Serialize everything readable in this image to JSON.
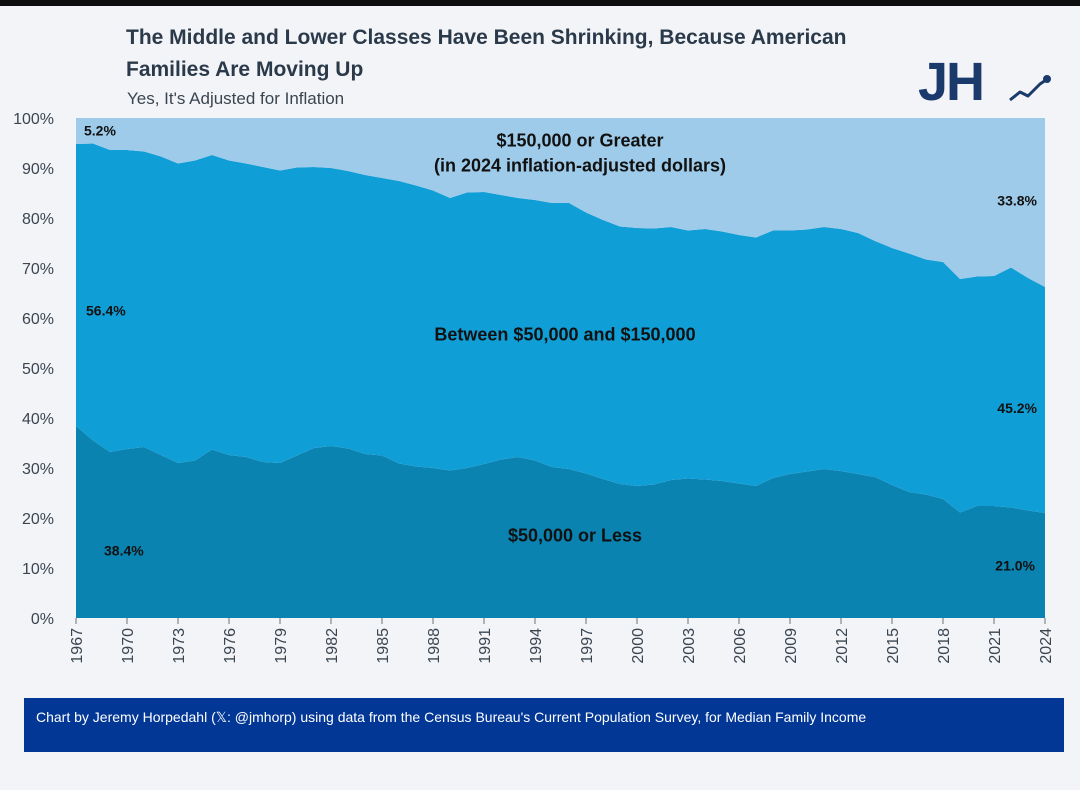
{
  "title": "The Middle and Lower Classes Have Been Shrinking, Because American Families Are Moving Up",
  "subtitle": "Yes, It's Adjusted for Inflation",
  "logo_text": "JH",
  "footer": "Chart by Jeremy Horpedahl (𝕏: @jmhorp) using data from the Census Bureau's Current Population Survey, for Median Family Income",
  "colors": {
    "low": "#0b83b1",
    "mid": "#109ed6",
    "high": "#9ecbe9",
    "logo": "#1a3a6b",
    "footer": "#023796"
  },
  "chart_data": {
    "type": "area",
    "stacked": true,
    "x": [
      1967,
      1968,
      1969,
      1970,
      1971,
      1972,
      1973,
      1974,
      1975,
      1976,
      1977,
      1978,
      1979,
      1980,
      1981,
      1982,
      1983,
      1984,
      1985,
      1986,
      1987,
      1988,
      1989,
      1990,
      1991,
      1992,
      1993,
      1994,
      1995,
      1996,
      1997,
      1998,
      1999,
      2000,
      2001,
      2002,
      2003,
      2004,
      2005,
      2006,
      2007,
      2008,
      2009,
      2010,
      2011,
      2012,
      2013,
      2014,
      2015,
      2016,
      2017,
      2018,
      2019,
      2020,
      2021,
      2022,
      2023,
      2024
    ],
    "xticks": [
      "1967",
      "1970",
      "1973",
      "1976",
      "1979",
      "1982",
      "1985",
      "1988",
      "1991",
      "1994",
      "1997",
      "2000",
      "2003",
      "2006",
      "2009",
      "2012",
      "2015",
      "2018",
      "2021",
      "2024"
    ],
    "yticks": [
      "0%",
      "10%",
      "20%",
      "30%",
      "40%",
      "50%",
      "60%",
      "70%",
      "80%",
      "90%",
      "100%"
    ],
    "ylim": [
      0,
      100
    ],
    "series": [
      {
        "name": "$50,000 or Less",
        "values": [
          38.4,
          35.5,
          33.2,
          33.8,
          34.2,
          32.6,
          31.0,
          31.5,
          33.7,
          32.6,
          32.2,
          31.2,
          31.0,
          32.5,
          34.0,
          34.4,
          33.9,
          32.8,
          32.5,
          30.9,
          30.3,
          30.0,
          29.5,
          30.0,
          30.8,
          31.7,
          32.2,
          31.5,
          30.2,
          29.8,
          28.9,
          27.8,
          26.8,
          26.4,
          26.7,
          27.6,
          27.9,
          27.7,
          27.4,
          26.9,
          26.4,
          28.0,
          28.8,
          29.3,
          29.8,
          29.4,
          28.8,
          28.2,
          26.6,
          25.2,
          24.7,
          23.8,
          21.1,
          22.4,
          22.4,
          22.1,
          21.5,
          21.0
        ]
      },
      {
        "name": "Between $50,000 and $150,000",
        "values": [
          56.4,
          59.4,
          60.4,
          59.8,
          59.1,
          59.7,
          59.9,
          60.0,
          58.9,
          58.9,
          58.7,
          59.0,
          58.5,
          57.6,
          56.2,
          55.6,
          55.5,
          55.8,
          55.5,
          56.5,
          56.2,
          55.5,
          54.5,
          55.1,
          54.4,
          52.9,
          51.8,
          52.1,
          52.8,
          53.2,
          52.2,
          51.8,
          51.5,
          51.6,
          51.2,
          50.6,
          49.6,
          50.1,
          49.9,
          49.7,
          49.7,
          49.5,
          48.7,
          48.4,
          48.4,
          48.4,
          48.2,
          47.2,
          47.4,
          47.7,
          47.0,
          47.4,
          46.7,
          45.9,
          46.0,
          48.0,
          46.5,
          45.2
        ]
      },
      {
        "name": "$150,000 or Greater",
        "values": [
          5.2,
          5.1,
          6.4,
          6.4,
          6.7,
          7.7,
          9.1,
          8.5,
          7.4,
          8.5,
          9.1,
          9.8,
          10.5,
          9.9,
          9.8,
          10.0,
          10.6,
          11.4,
          12.0,
          12.6,
          13.5,
          14.5,
          16.0,
          14.9,
          14.8,
          15.4,
          16.0,
          16.4,
          17.0,
          17.0,
          18.9,
          20.4,
          21.7,
          22.0,
          22.1,
          21.8,
          22.5,
          22.2,
          22.7,
          23.4,
          23.9,
          22.5,
          22.5,
          22.3,
          21.8,
          22.2,
          23.0,
          24.6,
          26.0,
          27.1,
          28.3,
          28.8,
          32.2,
          31.7,
          31.6,
          29.9,
          32.0,
          33.8
        ]
      }
    ],
    "annotations": [
      {
        "text": "5.2%",
        "series": "$150,000 or Greater",
        "year": 1967
      },
      {
        "text": "56.4%",
        "series": "Between $50,000 and $150,000",
        "year": 1967
      },
      {
        "text": "38.4%",
        "series": "$50,000 or Less",
        "year": 1967
      },
      {
        "text": "33.8%",
        "series": "$150,000 or Greater",
        "year": 2024
      },
      {
        "text": "45.2%",
        "series": "Between $50,000 and $150,000",
        "year": 2024
      },
      {
        "text": "21.0%",
        "series": "$50,000 or Less",
        "year": 2024
      }
    ],
    "area_labels": [
      {
        "lines": [
          "$150,000 or Greater",
          "(in 2024 inflation-adjusted dollars)"
        ]
      },
      {
        "lines": [
          "Between $50,000 and $150,000"
        ]
      },
      {
        "lines": [
          "$50,000 or Less"
        ]
      }
    ],
    "grid": false,
    "legend": "none"
  }
}
